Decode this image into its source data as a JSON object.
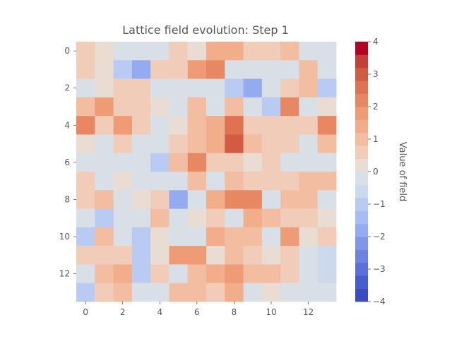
{
  "chart_data": {
    "type": "heatmap",
    "title": "Lattice field evolution: Step 1",
    "rows": 14,
    "cols": 14,
    "x_ticks": [
      0,
      2,
      4,
      6,
      8,
      10,
      12
    ],
    "y_ticks": [
      0,
      2,
      4,
      6,
      8,
      10,
      12
    ],
    "colorbar": {
      "label": "Value of field",
      "vmin": -4,
      "vmax": 4,
      "ticks": [
        -4,
        -3,
        -2,
        -1,
        0,
        1,
        2,
        3,
        4
      ],
      "levels": 20,
      "colormap": "coolwarm",
      "colors": [
        "#3b4cc0",
        "#465ccf",
        "#5a6fd8",
        "#6d82e1",
        "#8196e9",
        "#94aaf1",
        "#a8bbf3",
        "#bacbf3",
        "#ccd8ec",
        "#d9dfe7",
        "#e8dcd3",
        "#f1cdb9",
        "#f3bda1",
        "#f2ad8b",
        "#ef9b76",
        "#e88862",
        "#de7251",
        "#d25b43",
        "#c43f38",
        "#b40426"
      ]
    },
    "values": [
      [
        0.4,
        0.0,
        -0.4,
        -0.4,
        -0.4,
        0.4,
        0.0,
        1.2,
        1.2,
        0.4,
        0.4,
        0.8,
        -0.4,
        -0.4
      ],
      [
        0.4,
        0.0,
        -1.2,
        -2.0,
        0.4,
        0.4,
        1.6,
        2.0,
        -0.4,
        -0.4,
        -0.4,
        -0.4,
        0.8,
        -0.4
      ],
      [
        -0.4,
        0.0,
        0.4,
        0.4,
        -0.4,
        -0.4,
        -0.4,
        -0.4,
        -1.2,
        -2.0,
        -0.4,
        0.4,
        0.8,
        -1.2
      ],
      [
        0.8,
        1.6,
        0.4,
        0.4,
        0.0,
        -0.4,
        0.8,
        -0.4,
        0.8,
        -0.4,
        -1.2,
        2.0,
        -0.4,
        0.0
      ],
      [
        2.0,
        0.4,
        1.6,
        0.4,
        -0.4,
        0.0,
        0.8,
        1.2,
        2.4,
        0.4,
        0.4,
        0.4,
        0.4,
        2.0
      ],
      [
        0.0,
        -0.4,
        0.4,
        -0.4,
        -0.4,
        0.4,
        0.8,
        1.2,
        2.8,
        0.8,
        0.4,
        0.4,
        -0.4,
        0.8
      ],
      [
        -0.4,
        -0.4,
        -0.4,
        -0.4,
        -1.2,
        0.8,
        2.0,
        0.4,
        0.4,
        0.0,
        0.4,
        -0.4,
        -0.4,
        -0.4
      ],
      [
        0.4,
        -0.4,
        0.0,
        -0.4,
        -0.4,
        -0.4,
        0.8,
        -0.4,
        0.8,
        0.4,
        0.4,
        0.4,
        0.8,
        0.8
      ],
      [
        0.4,
        0.8,
        -0.4,
        0.0,
        0.4,
        -2.0,
        -0.4,
        1.2,
        2.0,
        2.0,
        -0.4,
        0.8,
        0.8,
        -0.4
      ],
      [
        -0.4,
        -1.2,
        -0.4,
        -0.4,
        0.8,
        -0.4,
        0.0,
        0.4,
        -0.4,
        1.2,
        0.8,
        0.4,
        0.4,
        0.0
      ],
      [
        -1.2,
        0.8,
        -0.4,
        -1.2,
        0.0,
        -0.4,
        -0.4,
        1.2,
        0.8,
        0.8,
        -0.4,
        1.6,
        0.0,
        0.4
      ],
      [
        0.4,
        0.4,
        0.4,
        -1.2,
        0.0,
        1.6,
        1.6,
        0.0,
        0.8,
        0.4,
        0.0,
        0.4,
        -0.4,
        -0.8
      ],
      [
        -0.4,
        0.8,
        1.2,
        -1.2,
        0.4,
        -0.4,
        0.8,
        1.2,
        1.6,
        0.8,
        0.8,
        0.4,
        -0.4,
        -0.8
      ],
      [
        -1.2,
        0.4,
        0.8,
        -0.4,
        -0.4,
        0.8,
        0.8,
        0.4,
        1.2,
        -0.4,
        0.0,
        -0.4,
        -0.4,
        -0.4
      ]
    ]
  }
}
